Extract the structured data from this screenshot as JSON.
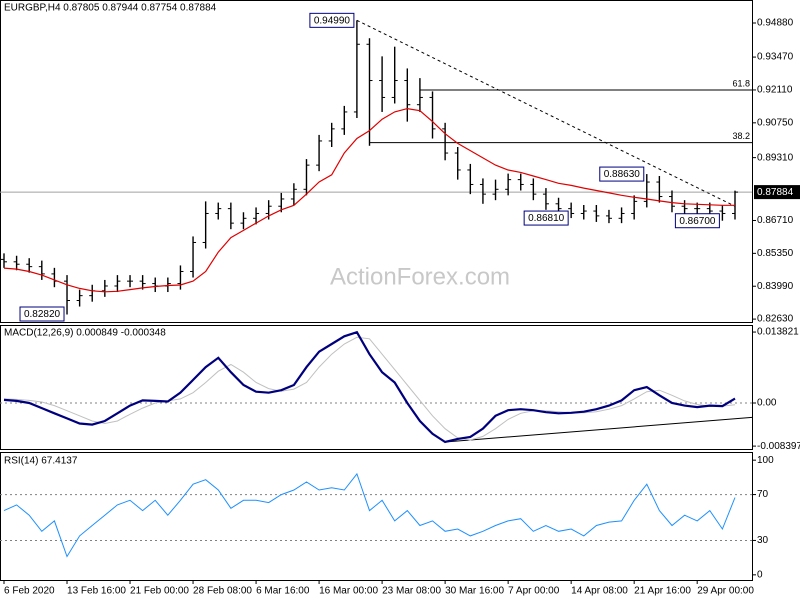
{
  "chart_data": [
    {
      "type": "ohlc",
      "title": "EURGBP,H4  0.87805 0.87944 0.87754 0.87884",
      "watermark": "ActionForex.com",
      "color": "#000000",
      "categories": [
        "6 Feb 2020",
        null,
        null,
        null,
        null,
        "13 Feb 16:00",
        null,
        null,
        null,
        null,
        "21 Feb 00:00",
        null,
        null,
        null,
        null,
        "28 Feb 08:00",
        null,
        null,
        null,
        null,
        "6 Mar 16:00",
        null,
        null,
        null,
        null,
        "16 Mar 00:00",
        null,
        null,
        null,
        null,
        "23 Mar 08:00",
        null,
        null,
        null,
        null,
        "30 Mar 16:00",
        null,
        null,
        null,
        null,
        "7 Apr 00:00",
        null,
        null,
        null,
        null,
        "14 Apr 08:00",
        null,
        null,
        null,
        null,
        "21 Apr 16:00",
        null,
        null,
        null,
        null,
        "29 Apr 00:00",
        null,
        null,
        null
      ],
      "open": [
        0.851,
        0.85,
        0.849,
        0.848,
        0.845,
        0.842,
        0.834,
        0.836,
        0.838,
        0.84,
        0.842,
        0.842,
        0.841,
        0.84,
        0.841,
        0.846,
        0.858,
        0.87,
        0.872,
        0.866,
        0.868,
        0.87,
        0.873,
        0.876,
        0.88,
        0.89,
        0.9,
        0.905,
        0.912,
        0.94,
        0.925,
        0.918,
        0.925,
        0.915,
        0.918,
        0.905,
        0.895,
        0.888,
        0.882,
        0.878,
        0.88,
        0.884,
        0.882,
        0.878,
        0.874,
        0.872,
        0.87,
        0.871,
        0.869,
        0.868,
        0.87,
        0.875,
        0.883,
        0.877,
        0.873,
        0.872,
        0.872,
        0.871,
        0.87
      ],
      "high": [
        0.8535,
        0.8525,
        0.8515,
        0.8505,
        0.8475,
        0.8445,
        0.8385,
        0.8405,
        0.8425,
        0.8445,
        0.8445,
        0.8445,
        0.8435,
        0.8435,
        0.8485,
        0.8605,
        0.875,
        0.8745,
        0.8745,
        0.8705,
        0.8725,
        0.8755,
        0.8785,
        0.8825,
        0.8925,
        0.9025,
        0.9075,
        0.9145,
        0.9499,
        0.9425,
        0.935,
        0.939,
        0.93,
        0.926,
        0.9205,
        0.9075,
        0.8975,
        0.8905,
        0.8845,
        0.884,
        0.8865,
        0.8865,
        0.8845,
        0.8805,
        0.8765,
        0.8745,
        0.8735,
        0.8735,
        0.8715,
        0.8725,
        0.8775,
        0.8863,
        0.8855,
        0.8795,
        0.8755,
        0.8745,
        0.8745,
        0.8735,
        0.87944
      ],
      "low": [
        0.8475,
        0.8465,
        0.8455,
        0.8425,
        0.8395,
        0.8282,
        0.8315,
        0.8335,
        0.8355,
        0.8375,
        0.8395,
        0.8385,
        0.8375,
        0.8375,
        0.8385,
        0.8435,
        0.8555,
        0.8675,
        0.8635,
        0.8635,
        0.8655,
        0.8675,
        0.8705,
        0.8735,
        0.8775,
        0.8875,
        0.8975,
        0.9025,
        0.9095,
        0.898,
        0.912,
        0.9155,
        0.908,
        0.912,
        0.901,
        0.892,
        0.884,
        0.878,
        0.874,
        0.8755,
        0.8775,
        0.8795,
        0.8755,
        0.8715,
        0.8695,
        0.8681,
        0.8675,
        0.8665,
        0.866,
        0.866,
        0.8675,
        0.8725,
        0.8745,
        0.8705,
        0.8695,
        0.8695,
        0.8685,
        0.867,
        0.8675
      ],
      "close": [
        0.85,
        0.849,
        0.848,
        0.845,
        0.842,
        0.834,
        0.836,
        0.838,
        0.84,
        0.842,
        0.842,
        0.841,
        0.84,
        0.841,
        0.846,
        0.858,
        0.87,
        0.872,
        0.866,
        0.868,
        0.87,
        0.873,
        0.876,
        0.88,
        0.89,
        0.9,
        0.905,
        0.912,
        0.94,
        0.925,
        0.918,
        0.925,
        0.915,
        0.918,
        0.905,
        0.895,
        0.888,
        0.882,
        0.878,
        0.88,
        0.884,
        0.882,
        0.878,
        0.874,
        0.872,
        0.87,
        0.871,
        0.869,
        0.868,
        0.87,
        0.875,
        0.883,
        0.877,
        0.873,
        0.872,
        0.872,
        0.871,
        0.87,
        0.87884
      ],
      "overlays": [
        {
          "color": "#e00000",
          "values": [
            0.8474,
            0.847,
            0.846,
            0.8445,
            0.8425,
            0.8405,
            0.839,
            0.838,
            0.8376,
            0.8378,
            0.8385,
            0.8392,
            0.8398,
            0.8402,
            0.8404,
            0.842,
            0.846,
            0.854,
            0.86,
            0.863,
            0.866,
            0.869,
            0.8715,
            0.8734,
            0.878,
            0.883,
            0.886,
            0.895,
            0.901,
            0.9043,
            0.909,
            0.912,
            0.9134,
            0.9125,
            0.908,
            0.903,
            0.899,
            0.896,
            0.893,
            0.89,
            0.888,
            0.887,
            0.8855,
            0.884,
            0.8825,
            0.8816,
            0.8805,
            0.8795,
            0.8785,
            0.8775,
            0.8767,
            0.876,
            0.8752,
            0.8745,
            0.874,
            0.8738,
            0.8736,
            0.8734,
            0.8734
          ]
        }
      ],
      "ylim": [
        0.8251,
        0.9579
      ],
      "yticks": [
        {
          "value": 0.9488,
          "label": "0.94880"
        },
        {
          "value": 0.9347,
          "label": "0.93470"
        },
        {
          "value": 0.9211,
          "label": "0.92110"
        },
        {
          "value": 0.9075,
          "label": "0.90750"
        },
        {
          "value": 0.8931,
          "label": "0.89310"
        },
        {
          "value": 0.8671,
          "label": "0.86710"
        },
        {
          "value": 0.8535,
          "label": "0.85350"
        },
        {
          "value": 0.8399,
          "label": "0.83990"
        },
        {
          "value": 0.8263,
          "label": "0.82630"
        }
      ],
      "annotations": [
        {
          "label": "0.94990",
          "value": 0.9499
        },
        {
          "label": "0.82820",
          "value": 0.8282
        },
        {
          "label": "0.88630",
          "value": 0.8863
        },
        {
          "label": "0.86810",
          "value": 0.8681
        },
        {
          "label": "0.86700",
          "value": 0.867
        }
      ],
      "levels": [
        {
          "label": "61.8",
          "value": 0.9211
        },
        {
          "label": "38.2",
          "value": 0.8993
        }
      ],
      "trendline": [
        0.9499,
        0.873
      ],
      "last_price": {
        "label": "0.87884",
        "value": 0.87884
      }
    },
    {
      "type": "line",
      "title": "MACD(12,26,9) 0.000849 -0.000348",
      "level_lines": true,
      "series": [
        {
          "color": "#00007f",
          "values": [
            0.0006,
            0.0004,
            0.0,
            -0.001,
            -0.002,
            -0.003,
            -0.004,
            -0.0042,
            -0.0035,
            -0.002,
            -0.0005,
            0.0005,
            0.0004,
            0.0003,
            0.002,
            0.0045,
            0.007,
            0.0088,
            0.006,
            0.0035,
            0.0022,
            0.002,
            0.0025,
            0.0035,
            0.007,
            0.01,
            0.0115,
            0.013,
            0.0138,
            0.0095,
            0.006,
            0.004,
            0.0,
            -0.0035,
            -0.006,
            -0.0076,
            -0.007,
            -0.0066,
            -0.005,
            -0.0025,
            -0.0014,
            -0.0012,
            -0.0014,
            -0.0018,
            -0.002,
            -0.0019,
            -0.0017,
            -0.0012,
            -0.0005,
            0.0005,
            0.0025,
            0.0031,
            0.0015,
            0.0,
            -0.0005,
            -0.0008,
            -0.0005,
            -0.0006,
            0.000849
          ]
        },
        {
          "color": "#c0c0c0",
          "values": [
            0.0008,
            0.0007,
            0.0005,
            0.0002,
            -0.0005,
            -0.0015,
            -0.0025,
            -0.0035,
            -0.004,
            -0.0035,
            -0.0022,
            -0.001,
            0.0,
            0.0004,
            0.0008,
            0.002,
            0.004,
            0.0062,
            0.0075,
            0.006,
            0.004,
            0.0028,
            0.0023,
            0.0027,
            0.004,
            0.007,
            0.0095,
            0.0115,
            0.0128,
            0.0125,
            0.0095,
            0.0065,
            0.0035,
            0.0005,
            -0.0025,
            -0.005,
            -0.0068,
            -0.0072,
            -0.0065,
            -0.005,
            -0.0032,
            -0.002,
            -0.0015,
            -0.0015,
            -0.0017,
            -0.0019,
            -0.0019,
            -0.0017,
            -0.0012,
            -0.0005,
            0.0008,
            0.0022,
            0.0025,
            0.0015,
            0.0004,
            -0.0003,
            -0.0006,
            -0.0006,
            -0.000348
          ]
        }
      ],
      "ylim": [
        -0.00896,
        0.015
      ],
      "yticks": [
        0.013821,
        {
          "value": 0,
          "label": "0.00"
        },
        -0.008397
      ],
      "trendline": [
        -0.0076,
        -0.0028
      ]
    },
    {
      "type": "line",
      "title": "RSI(14) 67.4137",
      "level_lines": true,
      "series": [
        {
          "color": "#1e90ff",
          "values": [
            56,
            61,
            52,
            38,
            47,
            16,
            34,
            43,
            52,
            61,
            65,
            56,
            65,
            52,
            65,
            79,
            83,
            74,
            58,
            65,
            65,
            63,
            70,
            74,
            81,
            74,
            76,
            74,
            88,
            56,
            65,
            47,
            56,
            43,
            47,
            38,
            40,
            34,
            38,
            43,
            47,
            49,
            38,
            43,
            38,
            40,
            34,
            43,
            46,
            47,
            65,
            79,
            56,
            43,
            52,
            47,
            56,
            40,
            67.4137
          ]
        }
      ],
      "ylim": [
        -4.5,
        106.25
      ],
      "yticks": [
        100,
        70,
        30,
        0
      ]
    }
  ]
}
